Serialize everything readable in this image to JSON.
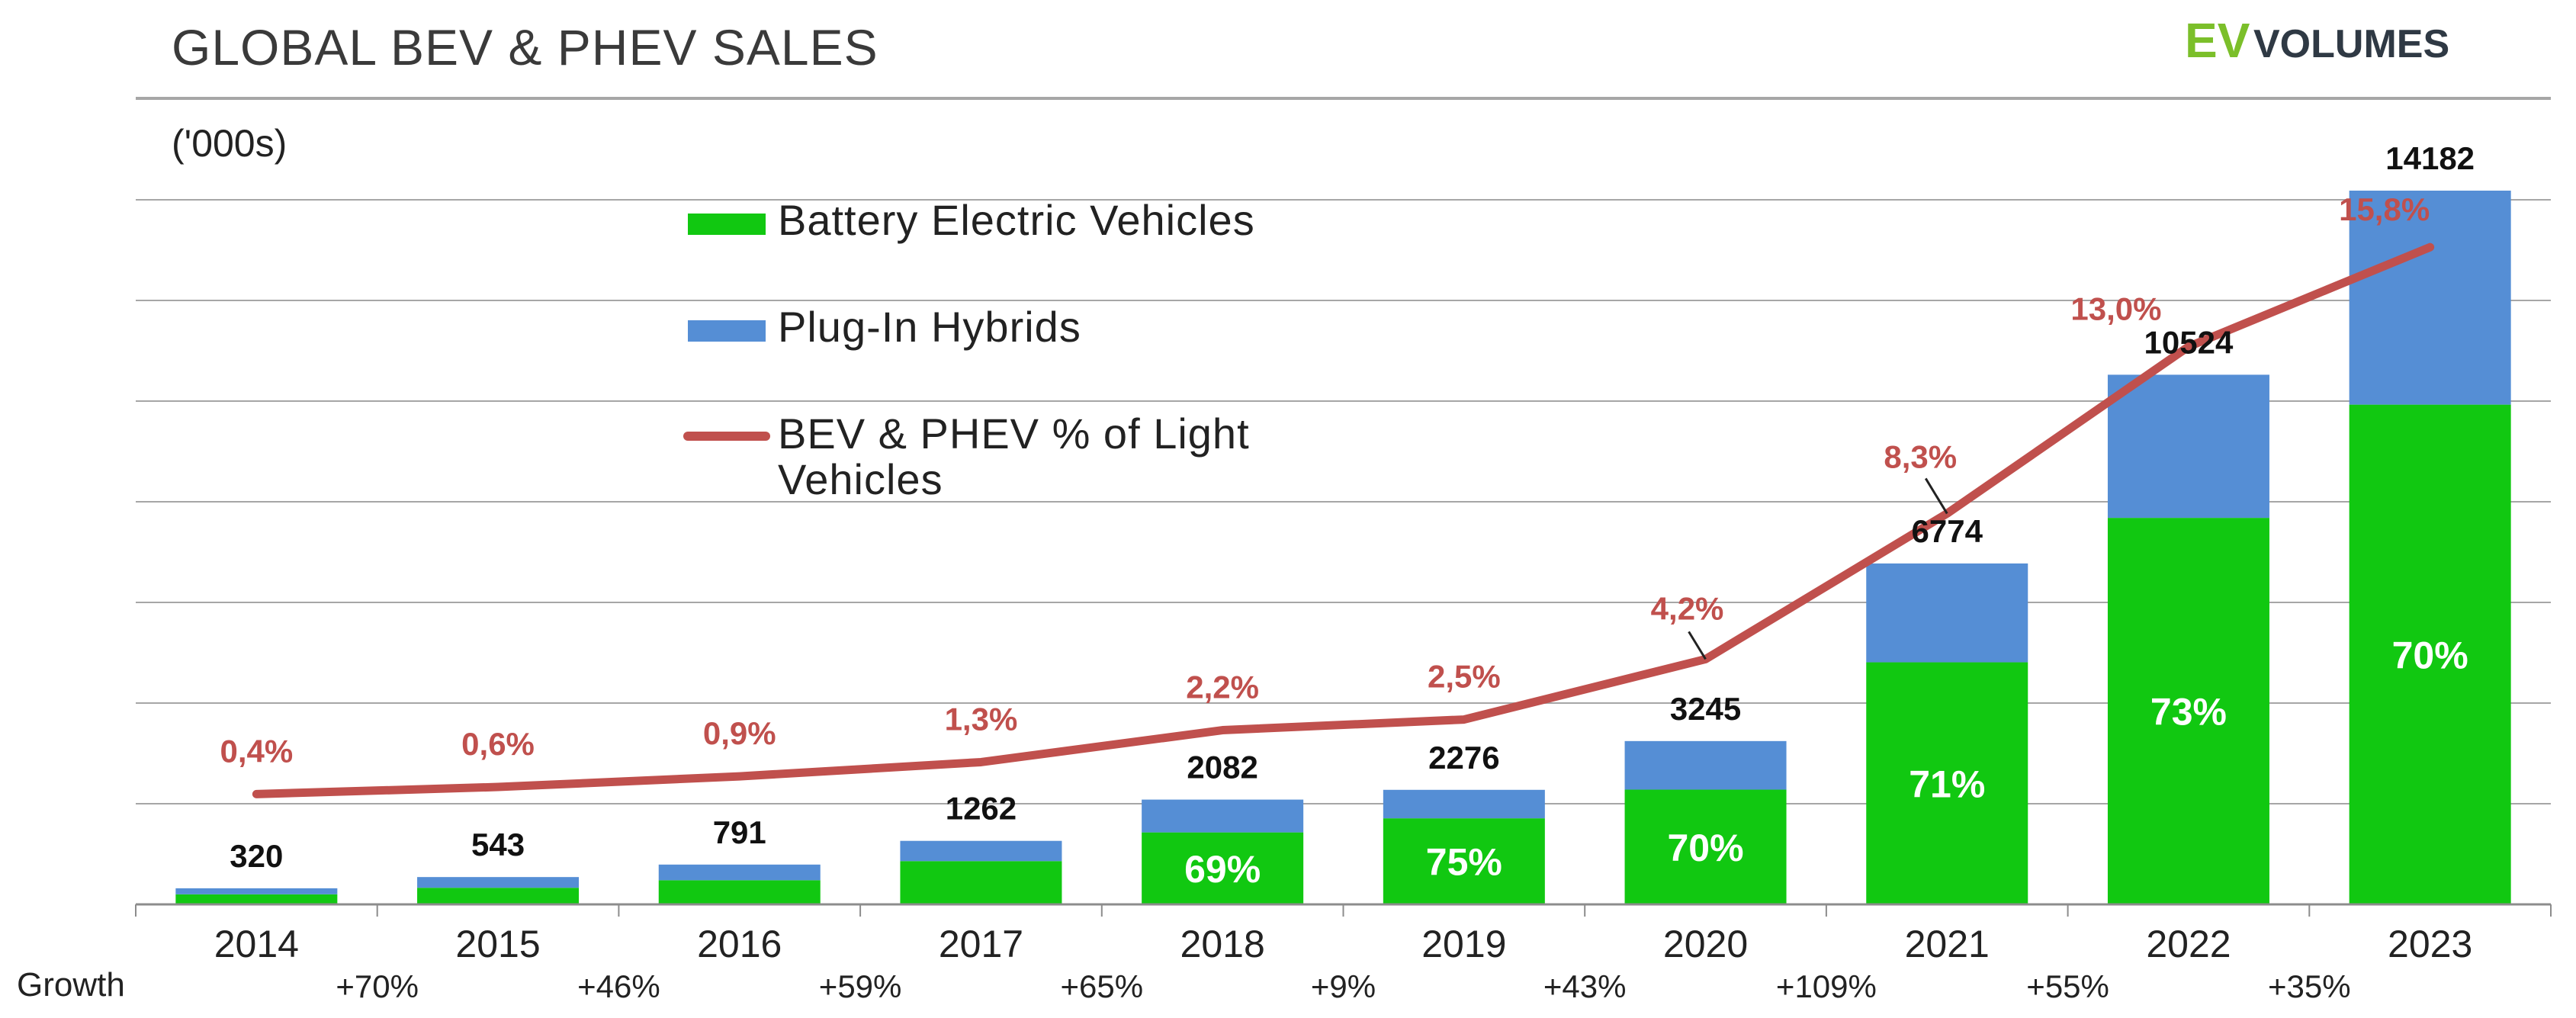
{
  "header": {
    "title": "GLOBAL BEV & PHEV SALES",
    "unit": "('000s)",
    "logo_ev": "EV",
    "logo_volumes": "VOLUMES"
  },
  "legend": {
    "bev": "Battery Electric Vehicles",
    "phev": "Plug-In Hybrids",
    "share_line_1": "BEV & PHEV % of Light",
    "share_line_2": "Vehicles"
  },
  "growth_label": "Growth",
  "colors": {
    "bev": "#11c811",
    "phev": "#558ed5",
    "line": "#c0504d"
  },
  "chart_data": {
    "type": "bar",
    "stacked": true,
    "title": "GLOBAL BEV & PHEV SALES",
    "ylabel": "('000s)",
    "ylim": [
      0,
      16000
    ],
    "grid": true,
    "categories": [
      "2014",
      "2015",
      "2016",
      "2017",
      "2018",
      "2019",
      "2020",
      "2021",
      "2022",
      "2023"
    ],
    "totals": [
      320,
      543,
      791,
      1262,
      2082,
      2276,
      3245,
      6774,
      10524,
      14182
    ],
    "total_labels": [
      "320",
      "543",
      "791",
      "1262",
      "2082",
      "2276",
      "3245",
      "6774",
      "10524",
      "14182"
    ],
    "series": [
      {
        "name": "Battery Electric Vehicles",
        "values": [
          200,
          330,
          480,
          860,
          1430,
          1710,
          2280,
          4810,
          7680,
          9930
        ]
      },
      {
        "name": "Plug-In Hybrids",
        "values": [
          120,
          213,
          311,
          402,
          652,
          566,
          965,
          1964,
          2844,
          4252
        ]
      }
    ],
    "bev_share_labels": [
      "",
      "",
      "",
      "",
      "69%",
      "75%",
      "70%",
      "71%",
      "73%",
      "70%"
    ],
    "line_series": {
      "name": "BEV & PHEV % of Light Vehicles",
      "values": [
        0.4,
        0.6,
        0.9,
        1.3,
        2.2,
        2.5,
        4.2,
        8.3,
        13.0,
        15.8
      ],
      "labels": [
        "0,4%",
        "0,6%",
        "0,9%",
        "1,3%",
        "2,2%",
        "2,5%",
        "4,2%",
        "8,3%",
        "13,0%",
        "15,8%"
      ]
    },
    "growth": [
      "",
      "+70%",
      "+46%",
      "+59%",
      "+65%",
      "+9%",
      "+43%",
      "+109%",
      "+55%",
      "+35%"
    ]
  }
}
